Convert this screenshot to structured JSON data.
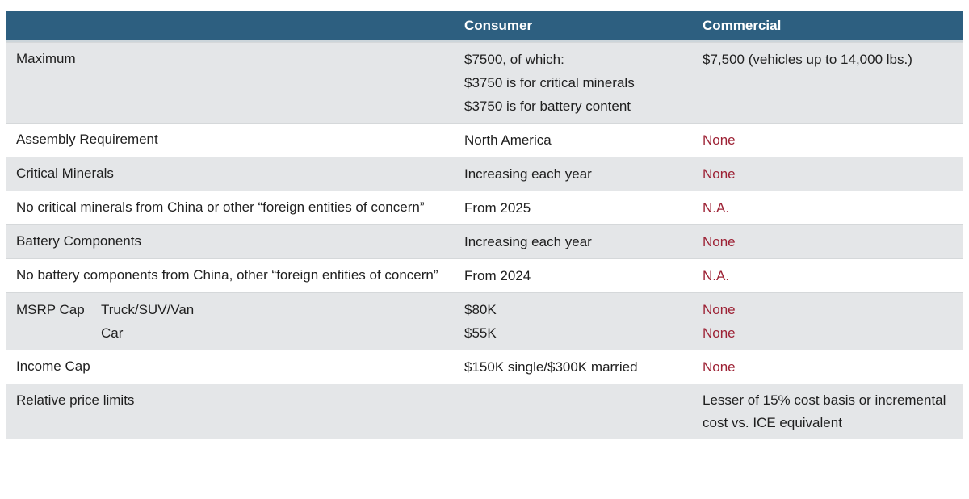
{
  "colors": {
    "header_bg": "#2d5f80",
    "header_text": "#ffffff",
    "row_alt_bg": "#e4e6e8",
    "accent_red": "#9d2235",
    "text": "#1f1f1f",
    "page_bg": "#ffffff",
    "divider": "#d5d8da",
    "header_underline": "#ccd5da"
  },
  "table": {
    "columns": {
      "consumer": "Consumer",
      "commercial": "Commercial"
    },
    "rows": [
      {
        "label": "Maximum",
        "consumer": [
          "$7500, of which:",
          "$3750 is for critical minerals",
          "$3750 is for battery content"
        ],
        "commercial": [
          "$7,500 (vehicles up to 14,000 lbs.)"
        ]
      },
      {
        "label": "Assembly Requirement",
        "consumer": [
          "North America"
        ],
        "commercial": [
          "None"
        ]
      },
      {
        "label": "Critical Minerals",
        "consumer": [
          "Increasing each year"
        ],
        "commercial": [
          "None"
        ]
      },
      {
        "label": "No critical minerals from China or other “foreign entities of concern”",
        "consumer": [
          "From 2025"
        ],
        "commercial": [
          "N.A."
        ]
      },
      {
        "label": "Battery Components",
        "consumer": [
          "Increasing each year"
        ],
        "commercial": [
          "None"
        ]
      },
      {
        "label": "No battery components from China, other “foreign entities of concern”",
        "consumer": [
          "From 2024"
        ],
        "commercial": [
          "N.A."
        ]
      },
      {
        "label": "MSRP Cap",
        "sublabels": [
          "Truck/SUV/Van",
          "Car"
        ],
        "consumer": [
          "$80K",
          "$55K"
        ],
        "commercial": [
          "None",
          "None"
        ]
      },
      {
        "label": "Income Cap",
        "consumer": [
          "$150K single/$300K married"
        ],
        "commercial": [
          "None"
        ]
      },
      {
        "label": "Relative price limits",
        "consumer": [],
        "commercial": [
          "Lesser of 15% cost basis or incremental cost vs. ICE equivalent"
        ]
      }
    ]
  }
}
